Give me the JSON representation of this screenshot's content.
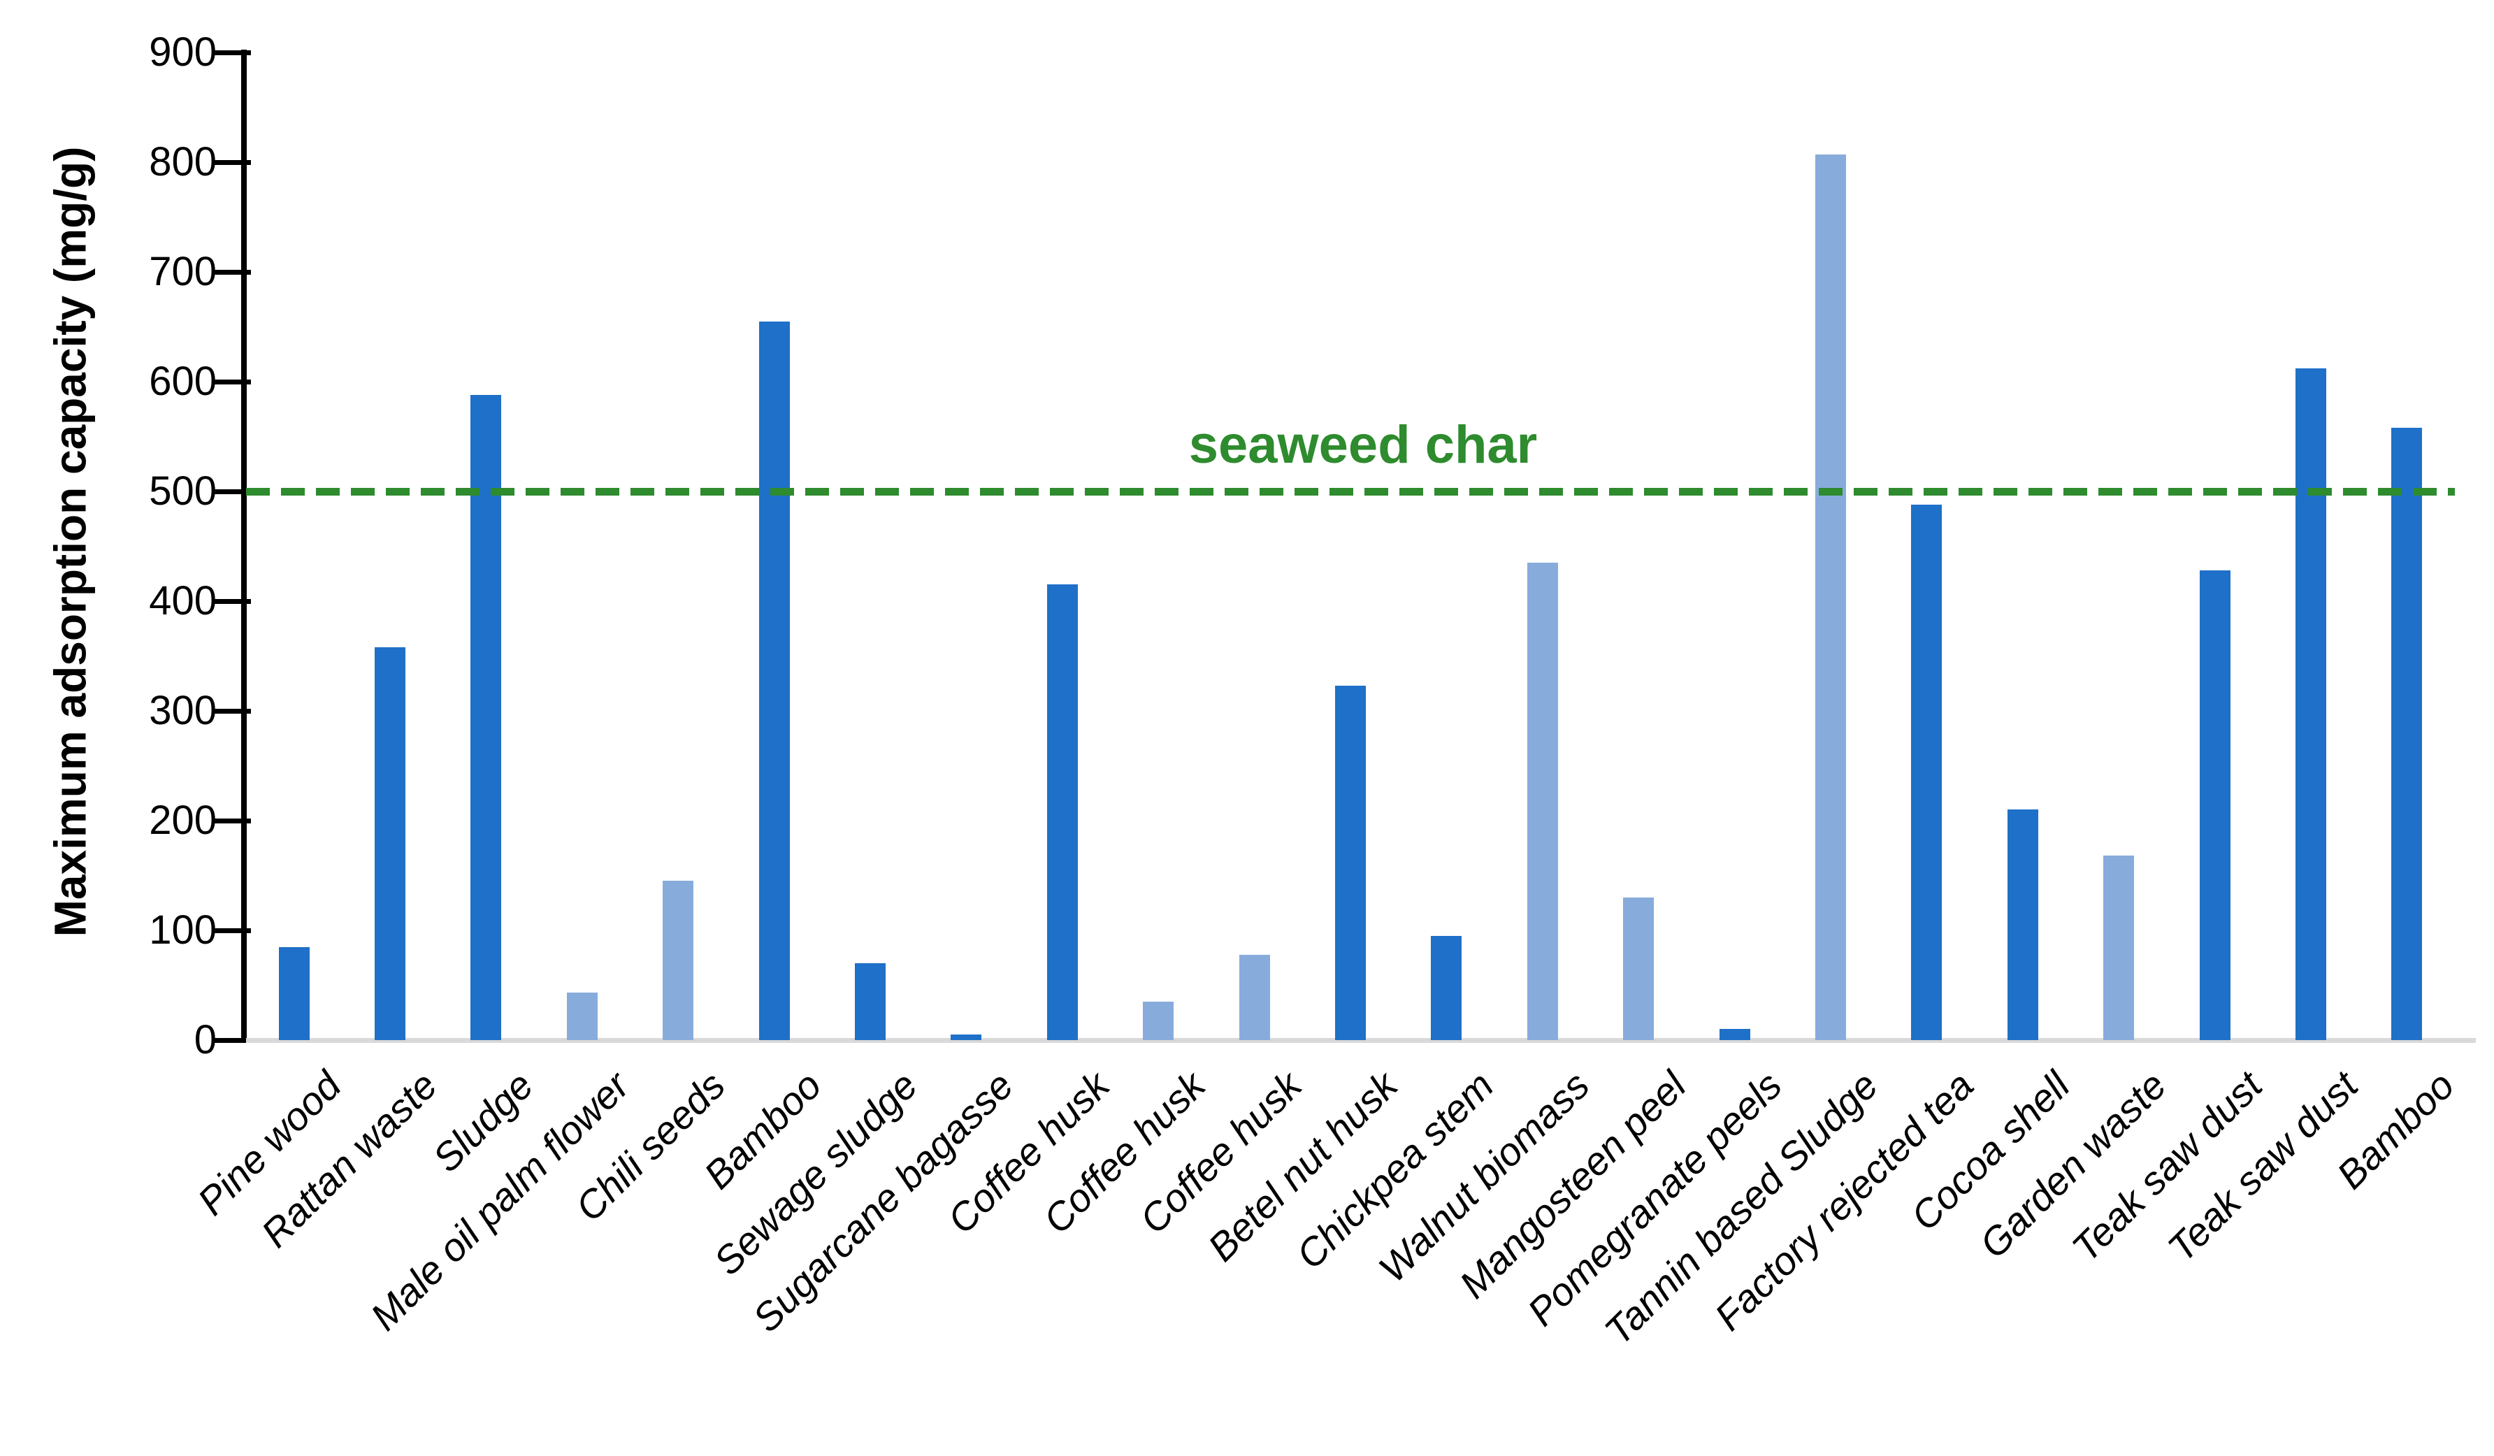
{
  "chart_data": {
    "type": "bar",
    "title": "",
    "xlabel": "",
    "ylabel": "Maximum adsorption capacity (mg/g)",
    "ylim": [
      0,
      900
    ],
    "yticks": [
      0,
      100,
      200,
      300,
      400,
      500,
      600,
      700,
      800,
      900
    ],
    "grid": false,
    "legend_position": "none",
    "categories": [
      "Pine wood",
      "Rattan waste",
      "Sludge",
      "Male oil palm flower",
      "Chili seeds",
      "Bamboo",
      "Sewage sludge",
      "Sugarcane bagasse",
      "Coffee husk",
      "Coffee husk",
      "Coffee husk",
      "Betel nut husk",
      "Chickpea stem",
      "Walnut biomass",
      "Mangosteen peel",
      "Pomegranate peels",
      "Tannin based Sludge",
      "Factory rejected tea",
      "Cocoa shell",
      "Garden waste",
      "Teak saw dust",
      "Teak saw dust",
      "Bamboo"
    ],
    "values": [
      85,
      358,
      588,
      43,
      145,
      655,
      70,
      5,
      415,
      35,
      78,
      323,
      95,
      435,
      130,
      10,
      807,
      488,
      210,
      168,
      428,
      612,
      558
    ],
    "bar_color_names": [
      "dark",
      "dark",
      "dark",
      "light",
      "light",
      "dark",
      "dark",
      "dark",
      "dark",
      "light",
      "light",
      "dark",
      "dark",
      "light",
      "light",
      "dark",
      "light",
      "dark",
      "dark",
      "light",
      "dark",
      "dark",
      "dark"
    ],
    "colors": {
      "dark": "#1E70C8",
      "light": "#87ACDB",
      "axis": "#000000",
      "baseline_gray": "#D9D9D9",
      "reference_green": "#2E8B2E"
    },
    "reference_line": {
      "label": "seaweed char",
      "value": 500,
      "style": "dashed"
    }
  }
}
